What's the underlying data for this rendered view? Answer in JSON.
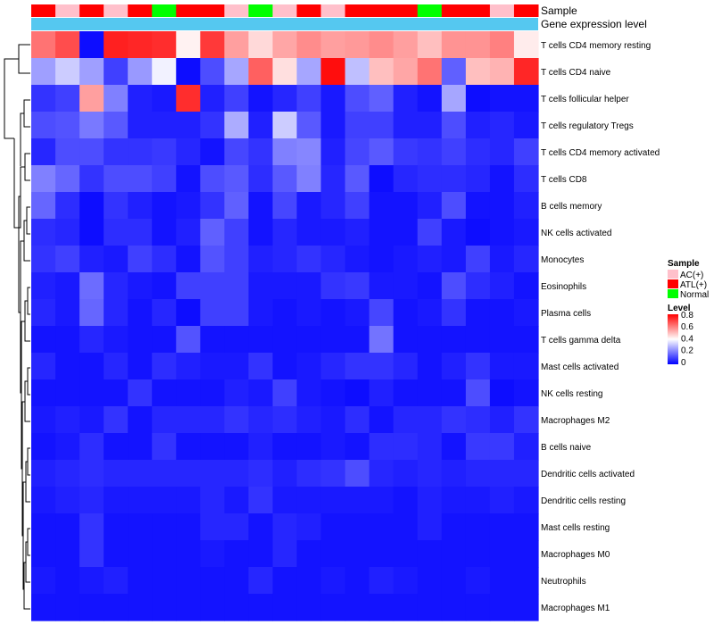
{
  "chart_data": {
    "type": "heatmap",
    "annotation_labels": {
      "sample": "Sample",
      "expression": "Gene expression level"
    },
    "sample_groups": [
      "ATL(+)",
      "AC(+)",
      "ATL(+)",
      "AC(+)",
      "ATL(+)",
      "Normal",
      "ATL(+)",
      "ATL(+)",
      "AC(+)",
      "Normal",
      "AC(+)",
      "ATL(+)",
      "AC(+)",
      "ATL(+)",
      "ATL(+)",
      "ATL(+)",
      "Normal",
      "ATL(+)",
      "ATL(+)",
      "AC(+)",
      "ATL(+)"
    ],
    "rows": [
      "T cells CD4 memory resting",
      "T cells CD4 naive",
      "T cells follicular helper",
      "T cells regulatory  Tregs",
      "T cells CD4 memory activated",
      "T cells CD8",
      "B cells memory",
      "NK cells activated",
      "Monocytes",
      "Eosinophils",
      "Plasma cells",
      "T cells gamma delta",
      "Mast cells activated",
      "NK cells resting",
      "Macrophages M2",
      "B cells naive",
      "Dendritic cells activated",
      "Dendritic cells resting",
      "Mast cells resting",
      "Macrophages M0",
      "Neutrophils",
      "Macrophages M1"
    ],
    "values": [
      [
        0.62,
        0.68,
        0.02,
        0.75,
        0.74,
        0.73,
        0.42,
        0.71,
        0.55,
        0.46,
        0.54,
        0.58,
        0.55,
        0.56,
        0.58,
        0.55,
        0.5,
        0.57,
        0.57,
        0.6,
        0.43
      ],
      [
        0.25,
        0.32,
        0.25,
        0.1,
        0.24,
        0.38,
        0.02,
        0.12,
        0.26,
        0.65,
        0.45,
        0.26,
        0.78,
        0.3,
        0.5,
        0.54,
        0.62,
        0.15,
        0.5,
        0.52,
        0.74
      ],
      [
        0.08,
        0.1,
        0.55,
        0.2,
        0.05,
        0.04,
        0.73,
        0.05,
        0.1,
        0.03,
        0.06,
        0.1,
        0.04,
        0.12,
        0.15,
        0.05,
        0.03,
        0.26,
        0.02,
        0.03,
        0.03
      ],
      [
        0.12,
        0.13,
        0.19,
        0.14,
        0.05,
        0.05,
        0.05,
        0.08,
        0.27,
        0.05,
        0.32,
        0.14,
        0.04,
        0.1,
        0.1,
        0.05,
        0.05,
        0.12,
        0.05,
        0.06,
        0.04
      ],
      [
        0.06,
        0.12,
        0.12,
        0.08,
        0.08,
        0.09,
        0.06,
        0.03,
        0.11,
        0.08,
        0.2,
        0.21,
        0.05,
        0.11,
        0.14,
        0.09,
        0.08,
        0.1,
        0.07,
        0.06,
        0.1
      ],
      [
        0.2,
        0.16,
        0.08,
        0.12,
        0.12,
        0.1,
        0.03,
        0.12,
        0.14,
        0.07,
        0.14,
        0.2,
        0.06,
        0.14,
        0.02,
        0.06,
        0.07,
        0.07,
        0.06,
        0.03,
        0.07
      ],
      [
        0.16,
        0.07,
        0.02,
        0.08,
        0.05,
        0.03,
        0.04,
        0.08,
        0.15,
        0.03,
        0.11,
        0.04,
        0.06,
        0.1,
        0.03,
        0.03,
        0.05,
        0.12,
        0.03,
        0.03,
        0.05
      ],
      [
        0.07,
        0.06,
        0.02,
        0.07,
        0.07,
        0.03,
        0.05,
        0.15,
        0.1,
        0.03,
        0.06,
        0.04,
        0.04,
        0.05,
        0.03,
        0.03,
        0.1,
        0.04,
        0.02,
        0.03,
        0.04
      ],
      [
        0.08,
        0.1,
        0.05,
        0.04,
        0.1,
        0.07,
        0.03,
        0.13,
        0.1,
        0.05,
        0.06,
        0.08,
        0.06,
        0.04,
        0.03,
        0.04,
        0.05,
        0.04,
        0.1,
        0.04,
        0.06
      ],
      [
        0.05,
        0.04,
        0.17,
        0.06,
        0.04,
        0.03,
        0.1,
        0.1,
        0.1,
        0.04,
        0.04,
        0.04,
        0.08,
        0.09,
        0.04,
        0.04,
        0.03,
        0.12,
        0.07,
        0.05,
        0.03
      ],
      [
        0.06,
        0.04,
        0.16,
        0.06,
        0.03,
        0.06,
        0.02,
        0.1,
        0.1,
        0.04,
        0.03,
        0.04,
        0.03,
        0.04,
        0.11,
        0.03,
        0.04,
        0.08,
        0.03,
        0.03,
        0.04
      ],
      [
        0.03,
        0.03,
        0.06,
        0.04,
        0.03,
        0.03,
        0.13,
        0.03,
        0.03,
        0.03,
        0.03,
        0.03,
        0.03,
        0.03,
        0.18,
        0.03,
        0.03,
        0.03,
        0.03,
        0.03,
        0.03
      ],
      [
        0.06,
        0.03,
        0.03,
        0.06,
        0.03,
        0.07,
        0.05,
        0.04,
        0.04,
        0.08,
        0.03,
        0.04,
        0.06,
        0.08,
        0.08,
        0.06,
        0.03,
        0.05,
        0.08,
        0.04,
        0.04
      ],
      [
        0.03,
        0.03,
        0.03,
        0.03,
        0.08,
        0.03,
        0.03,
        0.03,
        0.05,
        0.04,
        0.1,
        0.04,
        0.03,
        0.02,
        0.05,
        0.03,
        0.03,
        0.03,
        0.12,
        0.02,
        0.03
      ],
      [
        0.04,
        0.05,
        0.04,
        0.08,
        0.03,
        0.06,
        0.06,
        0.06,
        0.08,
        0.06,
        0.07,
        0.05,
        0.04,
        0.07,
        0.03,
        0.06,
        0.06,
        0.08,
        0.07,
        0.05,
        0.08
      ],
      [
        0.03,
        0.04,
        0.07,
        0.03,
        0.03,
        0.08,
        0.03,
        0.03,
        0.03,
        0.05,
        0.03,
        0.03,
        0.04,
        0.03,
        0.07,
        0.07,
        0.06,
        0.03,
        0.09,
        0.09,
        0.05
      ],
      [
        0.05,
        0.06,
        0.07,
        0.06,
        0.06,
        0.06,
        0.06,
        0.06,
        0.06,
        0.07,
        0.05,
        0.07,
        0.08,
        0.12,
        0.06,
        0.05,
        0.06,
        0.05,
        0.06,
        0.06,
        0.06
      ],
      [
        0.04,
        0.05,
        0.06,
        0.04,
        0.04,
        0.04,
        0.04,
        0.06,
        0.04,
        0.08,
        0.04,
        0.04,
        0.04,
        0.04,
        0.04,
        0.03,
        0.05,
        0.04,
        0.04,
        0.05,
        0.04
      ],
      [
        0.03,
        0.03,
        0.08,
        0.03,
        0.03,
        0.03,
        0.03,
        0.06,
        0.06,
        0.03,
        0.06,
        0.05,
        0.03,
        0.03,
        0.03,
        0.03,
        0.05,
        0.03,
        0.03,
        0.03,
        0.03
      ],
      [
        0.03,
        0.03,
        0.08,
        0.03,
        0.03,
        0.03,
        0.03,
        0.04,
        0.03,
        0.03,
        0.06,
        0.03,
        0.03,
        0.03,
        0.03,
        0.03,
        0.03,
        0.03,
        0.03,
        0.03,
        0.03
      ],
      [
        0.04,
        0.03,
        0.04,
        0.05,
        0.03,
        0.03,
        0.03,
        0.03,
        0.03,
        0.06,
        0.03,
        0.03,
        0.04,
        0.03,
        0.05,
        0.04,
        0.03,
        0.03,
        0.04,
        0.03,
        0.03
      ],
      [
        0.03,
        0.03,
        0.03,
        0.03,
        0.03,
        0.03,
        0.03,
        0.03,
        0.03,
        0.03,
        0.03,
        0.03,
        0.03,
        0.03,
        0.03,
        0.03,
        0.03,
        0.03,
        0.03,
        0.03,
        0.03
      ]
    ],
    "legend": {
      "sample_title": "Sample",
      "sample_entries": [
        {
          "label": "AC(+)",
          "color": "#ffc0cb"
        },
        {
          "label": "ATL(+)",
          "color": "#ff0000"
        },
        {
          "label": "Normal",
          "color": "#00ff00"
        }
      ],
      "level_title": "Level",
      "level_ticks": [
        "0.8",
        "0.6",
        "0.4",
        "0.2",
        "0"
      ],
      "level_range": [
        0,
        0.8
      ]
    },
    "colors": {
      "low": "#0000ff",
      "mid": "#ffffff",
      "high": "#ff0000",
      "expression_bar": "#55c8f0"
    }
  }
}
